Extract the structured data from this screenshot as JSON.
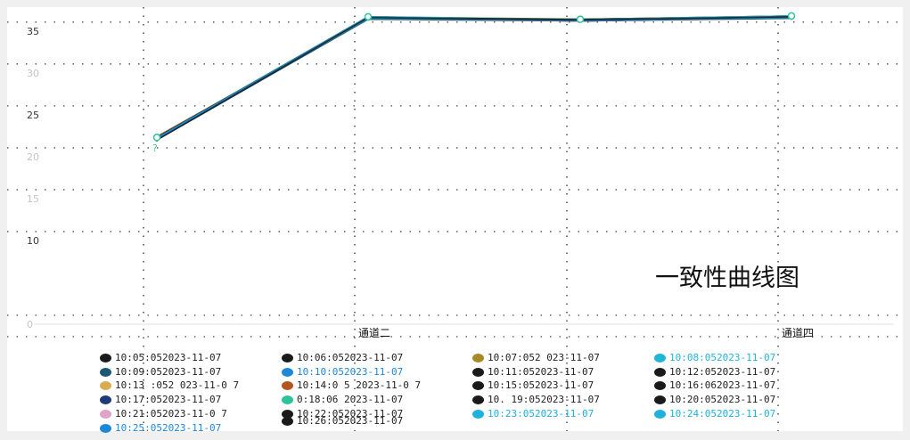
{
  "chart_data": {
    "type": "line",
    "title": "一致性曲线图",
    "categories": [
      "",
      "通道二",
      "",
      "通道四"
    ],
    "category_label_light": [
      true,
      false,
      true,
      false
    ],
    "y_ticks": [
      0,
      10,
      15,
      20,
      25,
      30,
      35
    ],
    "y_tick_light": [
      true,
      false,
      true,
      true,
      false,
      true,
      false
    ],
    "ylim": [
      0,
      37
    ],
    "grid": true,
    "point_annotation": {
      "index": 0,
      "text": "?"
    },
    "series": [
      {
        "label": "10:05:052023-11-07",
        "color": "#1a1a1a",
        "values": [
          22.2,
          36.6,
          36.3,
          36.7
        ]
      },
      {
        "label": "10:06:052023-11-07",
        "color": "#1a1a1a",
        "values": [
          22.1,
          36.5,
          36.2,
          36.6
        ]
      },
      {
        "label": "10:07:052 023-11-07",
        "color": "#a8892a",
        "values": [
          22.3,
          36.7,
          36.4,
          36.8
        ]
      },
      {
        "label": "10:08:052023-11-07",
        "color": "#1fb6d8",
        "values": [
          22.2,
          36.6,
          36.3,
          36.7
        ]
      },
      {
        "label": "10:09:052023-11-07",
        "color": "#1c5873",
        "values": [
          22.0,
          36.4,
          36.2,
          36.5
        ]
      },
      {
        "label": "10:10:052023-11-07",
        "color": "#1e88d8",
        "values": [
          22.2,
          36.5,
          36.3,
          36.7
        ]
      },
      {
        "label": "10:11:052023-11-07",
        "color": "#1a1a1a",
        "values": [
          22.1,
          36.6,
          36.2,
          36.6
        ]
      },
      {
        "label": "10:12:052023-11-07",
        "color": "#1a1a1a",
        "values": [
          22.3,
          36.6,
          36.4,
          36.8
        ]
      },
      {
        "label": "10:13 :052 023-11-0 7",
        "color": "#d9ac52",
        "values": [
          22.2,
          36.6,
          36.3,
          36.7
        ]
      },
      {
        "label": "10:14:0 5 2023-11-0 7",
        "color": "#b3561e",
        "values": [
          22.4,
          36.5,
          36.3,
          36.6
        ]
      },
      {
        "label": "10:15:052023-11-07",
        "color": "#1a1a1a",
        "values": [
          22.1,
          36.6,
          36.2,
          36.7
        ]
      },
      {
        "label": "10:16:062023-11-07",
        "color": "#1a1a1a",
        "values": [
          22.2,
          36.7,
          36.3,
          36.8
        ]
      },
      {
        "label": "10:17:052023-11-07",
        "color": "#1e3a78",
        "values": [
          22.0,
          36.5,
          36.2,
          36.6
        ]
      },
      {
        "label": "0:18:06 2023-11-07",
        "color": "#2ec29a",
        "values": [
          22.3,
          36.7,
          36.4,
          36.8
        ]
      },
      {
        "label": "10. 19:052023-11-07",
        "color": "#1a1a1a",
        "values": [
          22.2,
          36.6,
          36.3,
          36.7
        ]
      },
      {
        "label": "10:20:052023-11-07",
        "color": "#1a1a1a",
        "values": [
          22.1,
          36.5,
          36.3,
          36.6
        ]
      },
      {
        "label": "10:21:052023-11-0 7",
        "color": "#e0a2c6",
        "values": [
          22.2,
          36.6,
          36.2,
          36.7
        ]
      },
      {
        "label": "10:22:052023-11-07",
        "color": "#1a1a1a",
        "values": [
          22.3,
          36.6,
          36.4,
          36.7
        ]
      },
      {
        "label": "10:23:052023-11-07",
        "color": "#1fb0de",
        "values": [
          22.2,
          36.5,
          36.3,
          36.8
        ]
      },
      {
        "label": "10:24:052023-11-07",
        "color": "#1fb0de",
        "values": [
          22.1,
          36.6,
          36.3,
          36.6
        ]
      },
      {
        "label": "10:25:052023-11-07",
        "color": "#1e88d8",
        "values": [
          22.2,
          36.7,
          36.2,
          36.7
        ]
      },
      {
        "label": "10:26:052023-11-07",
        "color": "#1a1a1a",
        "values": [
          22.0,
          36.6,
          36.3,
          36.7
        ]
      }
    ]
  }
}
